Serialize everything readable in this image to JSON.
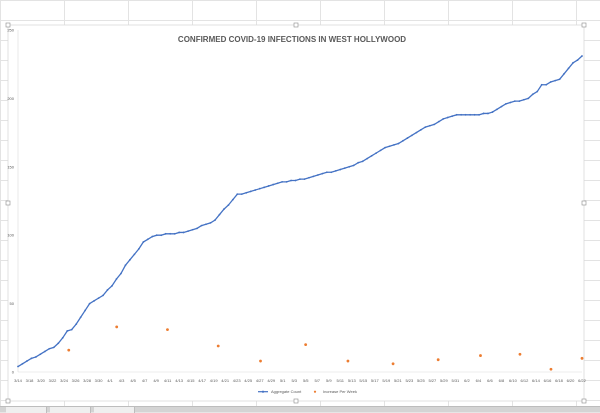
{
  "chart_data": {
    "type": "line",
    "title": "CONFIRMED COVID-19 INFECTIONS IN WEST HOLLYWOOD",
    "xlabel": "",
    "ylabel": "",
    "ylim": [
      0,
      250
    ],
    "yticks": [
      0,
      50,
      100,
      150,
      200,
      250
    ],
    "grid": false,
    "legend_position": "bottom",
    "x_tick_labels": [
      "3/14",
      "3/18",
      "3/20",
      "3/22",
      "3/24",
      "3/26",
      "3/28",
      "3/30",
      "4/1",
      "4/3",
      "4/5",
      "4/7",
      "4/9",
      "4/11",
      "4/13",
      "4/15",
      "4/17",
      "4/19",
      "4/21",
      "4/23",
      "4/25",
      "4/27",
      "4/29",
      "5/1",
      "5/3",
      "5/5",
      "5/7",
      "5/9",
      "5/11",
      "5/13",
      "5/15",
      "5/17",
      "5/19",
      "5/21",
      "5/23",
      "5/25",
      "5/27",
      "5/29",
      "5/31",
      "6/2",
      "6/4",
      "6/6",
      "6/8",
      "6/10",
      "6/12",
      "6/14",
      "6/16",
      "6/18",
      "6/20",
      "6/22"
    ],
    "series": [
      {
        "name": "Aggregate Count",
        "color": "#4472c4",
        "style": "line-markers",
        "values": [
          4,
          6,
          8,
          10,
          11,
          13,
          15,
          17,
          18,
          21,
          25,
          30,
          31,
          35,
          40,
          45,
          50,
          52,
          54,
          56,
          60,
          63,
          68,
          72,
          78,
          82,
          86,
          90,
          95,
          97,
          99,
          100,
          100,
          101,
          101,
          101,
          102,
          102,
          103,
          104,
          105,
          107,
          108,
          109,
          111,
          115,
          119,
          122,
          126,
          130,
          130,
          131,
          132,
          133,
          134,
          135,
          136,
          137,
          138,
          139,
          139,
          140,
          140,
          141,
          141,
          142,
          143,
          144,
          145,
          146,
          146,
          147,
          148,
          149,
          150,
          151,
          153,
          154,
          156,
          158,
          160,
          162,
          164,
          165,
          166,
          167,
          169,
          171,
          173,
          175,
          177,
          179,
          180,
          181,
          183,
          185,
          186,
          187,
          188,
          188,
          188,
          188,
          188,
          188,
          189,
          189,
          190,
          192,
          194,
          196,
          197,
          198,
          198,
          199,
          200,
          203,
          205,
          210,
          210,
          212,
          213,
          214,
          218,
          222,
          226,
          228,
          231
        ]
      },
      {
        "name": "Increase Per Week",
        "color": "#ed7d31",
        "style": "markers",
        "points": [
          [
            0.09,
            16
          ],
          [
            0.175,
            33
          ],
          [
            0.265,
            31
          ],
          [
            0.355,
            19
          ],
          [
            0.43,
            8
          ],
          [
            0.51,
            20
          ],
          [
            0.585,
            8
          ],
          [
            0.665,
            6
          ],
          [
            0.745,
            9
          ],
          [
            0.82,
            12
          ],
          [
            0.89,
            13
          ],
          [
            0.945,
            2
          ],
          [
            1.0,
            10
          ]
        ]
      }
    ]
  }
}
